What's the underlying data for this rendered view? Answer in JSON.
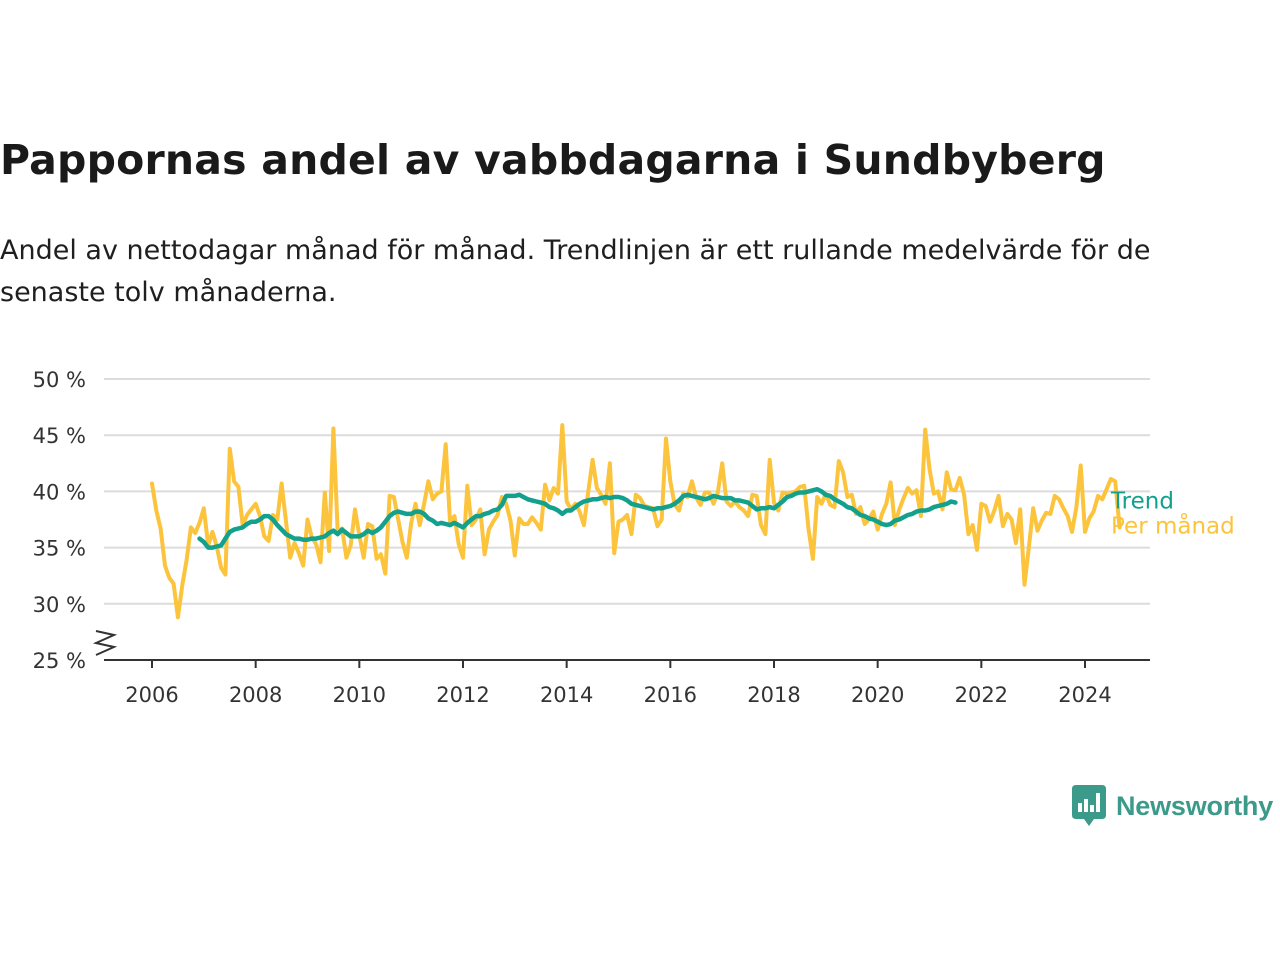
{
  "title": "Pappornas andel av vabbdagarna i Sundbyberg",
  "subtitle": "Andel av nettodagar månad för månad. Trendlinjen är ett rullande medelvärde för de senaste tolv månaderna.",
  "brand": {
    "name": "Newsworthy",
    "logo_icon": "newsworthy-logo-icon",
    "color": "#3c9a8a"
  },
  "chart_data": {
    "type": "line",
    "title": "Pappornas andel av vabbdagarna i Sundbyberg",
    "subtitle": "Andel av nettodagar månad för månad. Trendlinjen är ett rullande medelvärde för de senaste tolv månaderna.",
    "xlabel": "",
    "ylabel": "",
    "y_unit": "%",
    "ylim": [
      25,
      50
    ],
    "yticks": [
      25,
      30,
      35,
      40,
      45,
      50
    ],
    "ytick_labels": [
      "25 %",
      "30 %",
      "35 %",
      "40 %",
      "45 %",
      "50 %"
    ],
    "y_axis_break": true,
    "xticks": [
      "2006",
      "2008",
      "2010",
      "2012",
      "2014",
      "2016",
      "2018",
      "2020",
      "2022",
      "2024"
    ],
    "x_start": "2006-01",
    "x_end": "2024-05",
    "grid": true,
    "legend": "inline-right",
    "series": [
      {
        "name": "Trend",
        "color": "#13a08c",
        "start": "2006-12",
        "values": [
          35.8,
          35.5,
          35.0,
          35.0,
          35.1,
          35.2,
          35.8,
          36.4,
          36.6,
          36.7,
          36.8,
          37.1,
          37.3,
          37.3,
          37.5,
          37.8,
          37.8,
          37.5,
          37.0,
          36.6,
          36.2,
          36.0,
          35.8,
          35.8,
          35.7,
          35.7,
          35.8,
          35.8,
          35.9,
          36.0,
          36.3,
          36.5,
          36.2,
          36.6,
          36.3,
          36.0,
          36.0,
          36.0,
          36.2,
          36.5,
          36.3,
          36.5,
          36.8,
          37.3,
          37.8,
          38.1,
          38.2,
          38.1,
          38.0,
          38.0,
          38.2,
          38.2,
          38.0,
          37.6,
          37.4,
          37.1,
          37.2,
          37.1,
          37.0,
          37.2,
          37.0,
          36.8,
          37.2,
          37.5,
          37.8,
          37.8,
          38.0,
          38.1,
          38.3,
          38.4,
          38.8,
          39.6,
          39.6,
          39.6,
          39.7,
          39.5,
          39.3,
          39.2,
          39.1,
          39.0,
          38.9,
          38.6,
          38.5,
          38.3,
          38.0,
          38.3,
          38.3,
          38.6,
          38.9,
          39.1,
          39.2,
          39.3,
          39.3,
          39.4,
          39.5,
          39.4,
          39.5,
          39.5,
          39.4,
          39.2,
          38.9,
          38.8,
          38.7,
          38.6,
          38.5,
          38.4,
          38.5,
          38.5,
          38.6,
          38.7,
          38.9,
          39.2,
          39.6,
          39.7,
          39.6,
          39.5,
          39.4,
          39.3,
          39.4,
          39.6,
          39.5,
          39.4,
          39.4,
          39.4,
          39.2,
          39.2,
          39.1,
          39.0,
          38.7,
          38.4,
          38.5,
          38.5,
          38.6,
          38.5,
          38.8,
          39.1,
          39.5,
          39.6,
          39.8,
          39.9,
          39.9,
          40.0,
          40.1,
          40.2,
          40.0,
          39.7,
          39.6,
          39.3,
          39.1,
          38.9,
          38.6,
          38.5,
          38.2,
          37.9,
          37.8,
          37.6,
          37.5,
          37.3,
          37.1,
          37.0,
          37.1,
          37.4,
          37.5,
          37.7,
          37.9,
          38.0,
          38.2,
          38.3,
          38.3,
          38.4,
          38.6,
          38.7,
          38.8,
          38.9,
          39.1,
          39.0
        ]
      },
      {
        "name": "Per månad",
        "color": "#fcc33c",
        "start": "2006-01",
        "values": [
          40.7,
          38.3,
          36.7,
          33.4,
          32.3,
          31.8,
          28.8,
          31.6,
          33.9,
          36.8,
          36.3,
          37.2,
          38.5,
          35.2,
          36.4,
          35.1,
          33.2,
          32.6,
          43.8,
          40.9,
          40.4,
          37.0,
          37.9,
          38.4,
          38.9,
          37.8,
          36.0,
          35.6,
          37.9,
          37.5,
          40.7,
          37.4,
          34.1,
          35.4,
          34.5,
          33.4,
          37.5,
          35.9,
          35.3,
          33.7,
          39.9,
          34.7,
          45.6,
          36.4,
          36.7,
          34.1,
          35.2,
          38.4,
          36.1,
          34.1,
          37.1,
          36.9,
          34.0,
          34.4,
          32.7,
          39.6,
          39.5,
          37.5,
          35.5,
          34.1,
          37.2,
          38.9,
          37.0,
          38.9,
          40.9,
          39.3,
          39.8,
          40.0,
          44.2,
          37.3,
          37.8,
          35.3,
          34.1,
          40.5,
          37.0,
          37.5,
          38.4,
          34.4,
          36.6,
          37.3,
          37.9,
          39.5,
          38.9,
          37.4,
          34.3,
          37.6,
          37.1,
          37.1,
          37.7,
          37.2,
          36.6,
          40.6,
          39.2,
          40.3,
          39.8,
          45.9,
          39.1,
          38.4,
          38.9,
          38.2,
          37.0,
          40.0,
          42.8,
          40.3,
          39.7,
          38.9,
          42.5,
          34.5,
          37.3,
          37.5,
          37.9,
          36.2,
          39.7,
          39.4,
          38.7,
          38.6,
          38.5,
          36.9,
          37.5,
          44.7,
          40.9,
          38.8,
          38.3,
          39.8,
          39.5,
          40.9,
          39.4,
          38.8,
          39.9,
          39.9,
          38.9,
          39.9,
          42.5,
          39.1,
          38.7,
          39.1,
          38.6,
          38.3,
          37.8,
          39.7,
          39.6,
          37.0,
          36.2,
          42.8,
          39.0,
          38.3,
          39.9,
          39.8,
          39.9,
          40.0,
          40.4,
          40.5,
          36.6,
          34.0,
          39.5,
          38.9,
          39.8,
          38.8,
          38.6,
          42.7,
          41.7,
          39.5,
          39.7,
          38.0,
          38.6,
          37.1,
          37.5,
          38.2,
          36.6,
          38.0,
          38.9,
          40.8,
          37.0,
          38.4,
          39.4,
          40.3,
          39.8,
          40.1,
          37.8,
          45.5,
          42.0,
          39.8,
          40.0,
          38.4,
          41.7,
          40.2,
          40.1,
          41.2,
          39.7,
          36.2,
          37.0,
          34.8,
          38.9,
          38.7,
          37.3,
          38.3,
          39.6,
          36.9,
          38.0,
          37.5,
          35.4,
          38.4,
          31.7,
          35.0,
          38.5,
          36.5,
          37.4,
          38.1,
          38.0,
          39.6,
          39.3,
          38.5,
          37.8,
          36.4,
          38.6,
          42.3,
          36.4,
          37.6,
          38.2,
          39.6,
          39.3,
          40.2,
          41.1,
          40.9,
          36.8
        ]
      }
    ]
  }
}
